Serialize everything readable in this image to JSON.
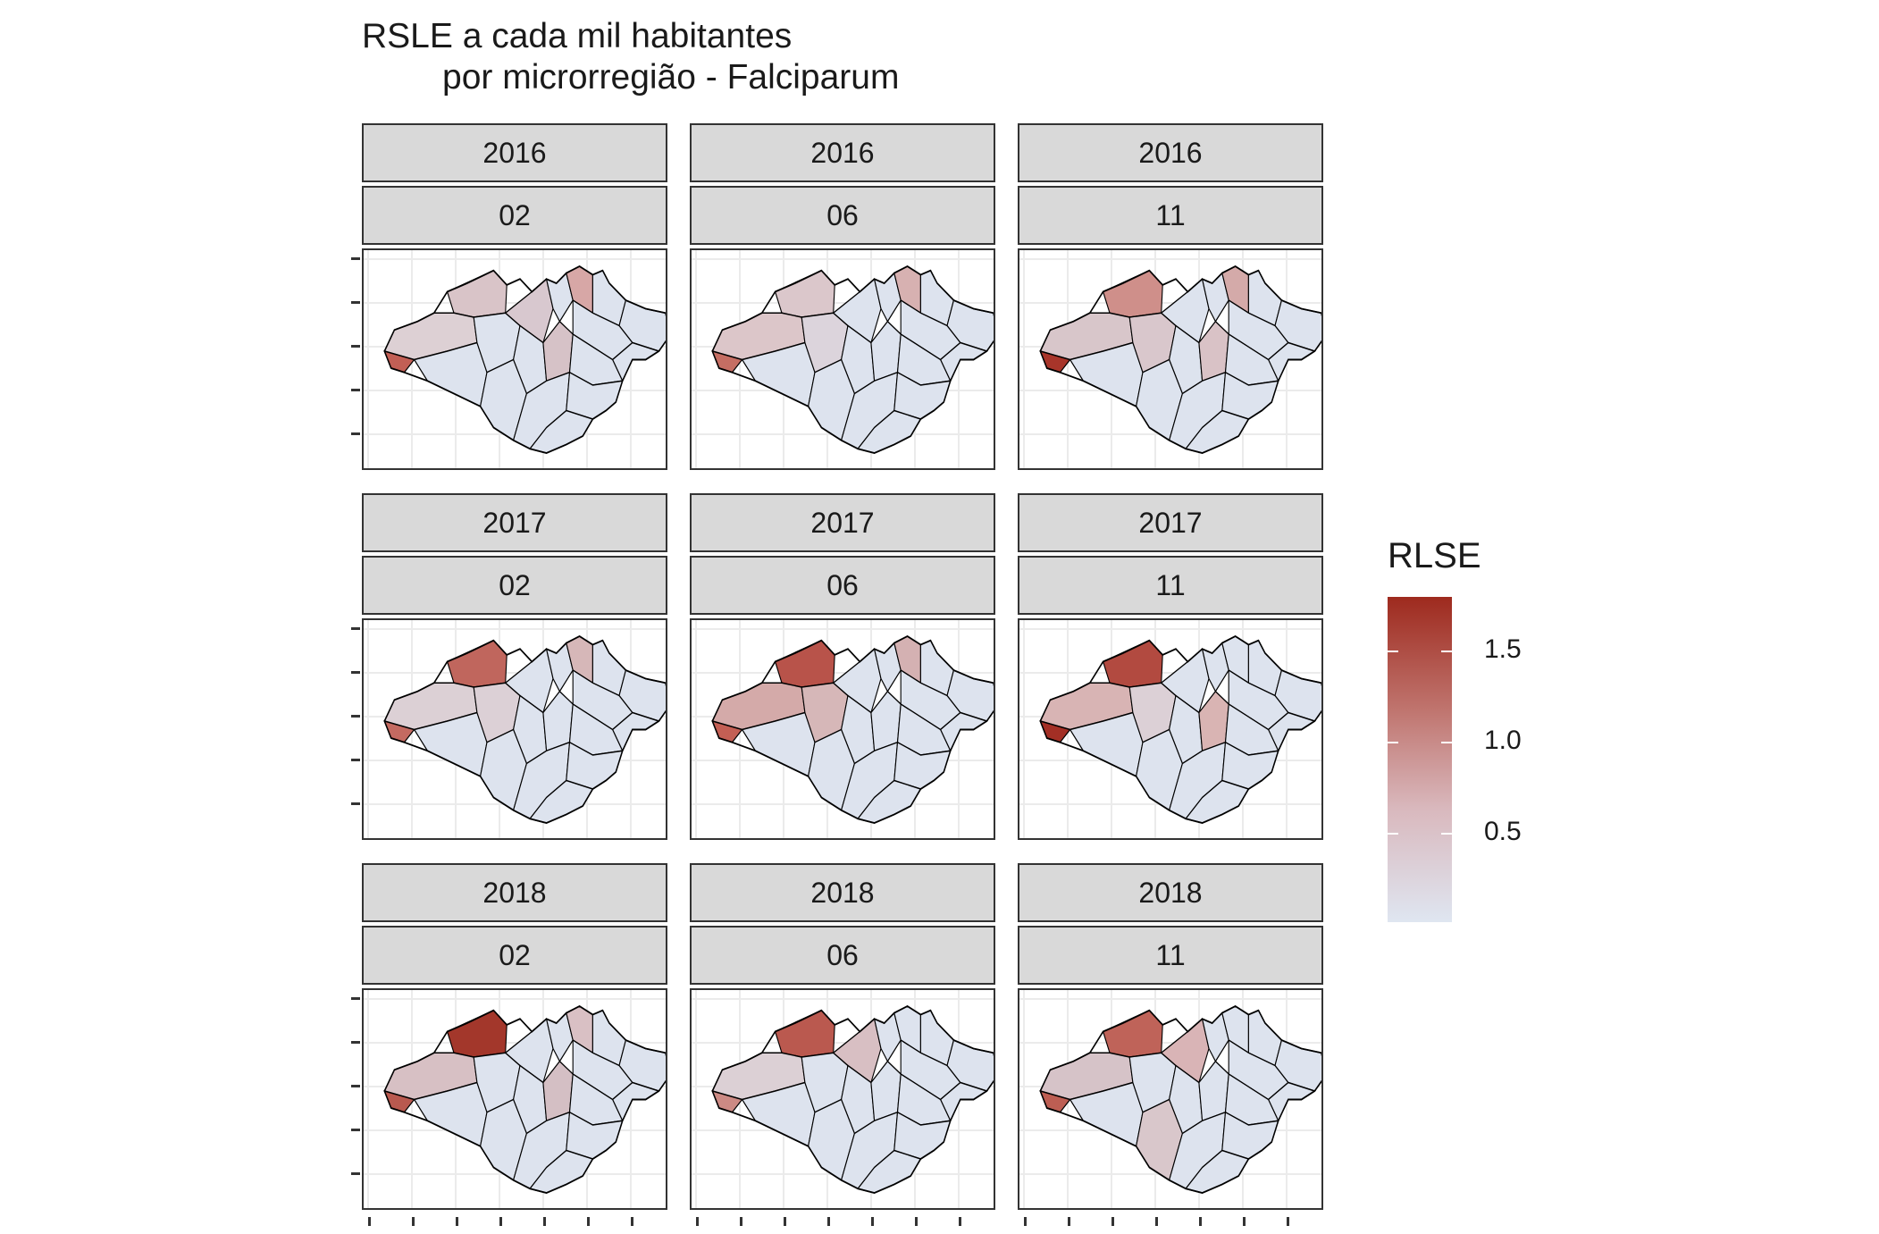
{
  "title_line1": "RSLE a cada mil habitantes",
  "title_line2": "por microrregião - Falciparum",
  "panels": [
    {
      "year": "2016",
      "month": "02"
    },
    {
      "year": "2016",
      "month": "06"
    },
    {
      "year": "2016",
      "month": "11"
    },
    {
      "year": "2017",
      "month": "02"
    },
    {
      "year": "2017",
      "month": "06"
    },
    {
      "year": "2017",
      "month": "11"
    },
    {
      "year": "2018",
      "month": "02"
    },
    {
      "year": "2018",
      "month": "06"
    },
    {
      "year": "2018",
      "month": "11"
    }
  ],
  "legend": {
    "title": "RLSE",
    "labels": [
      "1.5",
      "1.0",
      "0.5"
    ],
    "color_high": "#9e2a1e",
    "color_mid": "#d9b8bd",
    "color_low": "#dfe6f1"
  },
  "colors": {
    "strip_bg": "#d9d9d9",
    "region_base": "#dde3ee",
    "region_outline": "#000000"
  }
}
